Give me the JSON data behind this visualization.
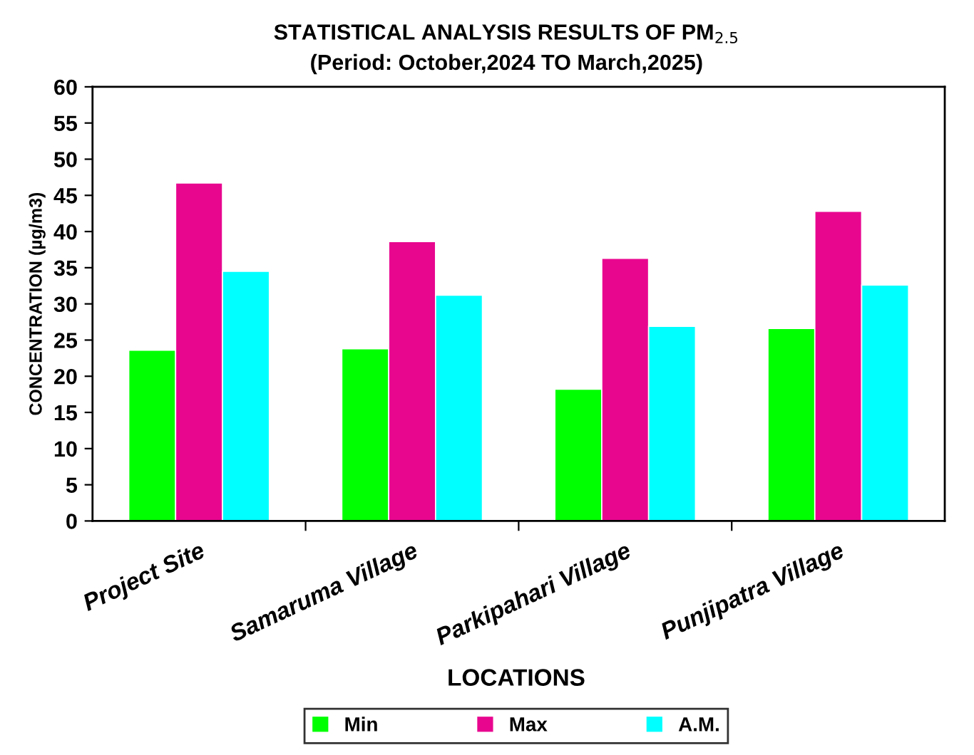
{
  "chart_data": {
    "type": "bar",
    "title": "STATISTICAL ANALYSIS RESULTS OF PM$_{2.5}$",
    "subtitle": "(Period: October,2024 TO March,2025)",
    "xlabel": "LOCATIONS",
    "ylabel": "CONCENTRATION (µg/m3)",
    "categories": [
      "Project Site",
      "Samaruma Village",
      "Parkipahari Village",
      "Punjipatra Village"
    ],
    "series": [
      {
        "name": "Min",
        "color": "#00ff00",
        "values": [
          23.6,
          23.8,
          18.2,
          26.6
        ]
      },
      {
        "name": "Max",
        "color": "#e8068f",
        "values": [
          46.7,
          38.6,
          36.3,
          42.8
        ]
      },
      {
        "name": "A.M.",
        "color": "#00ffff",
        "values": [
          34.5,
          31.2,
          26.9,
          32.6
        ]
      }
    ],
    "ylim": [
      0,
      60
    ],
    "yticks": [
      0,
      5,
      10,
      15,
      20,
      25,
      30,
      35,
      40,
      45,
      50,
      55,
      60
    ],
    "grid": false,
    "legend": "bottom"
  }
}
